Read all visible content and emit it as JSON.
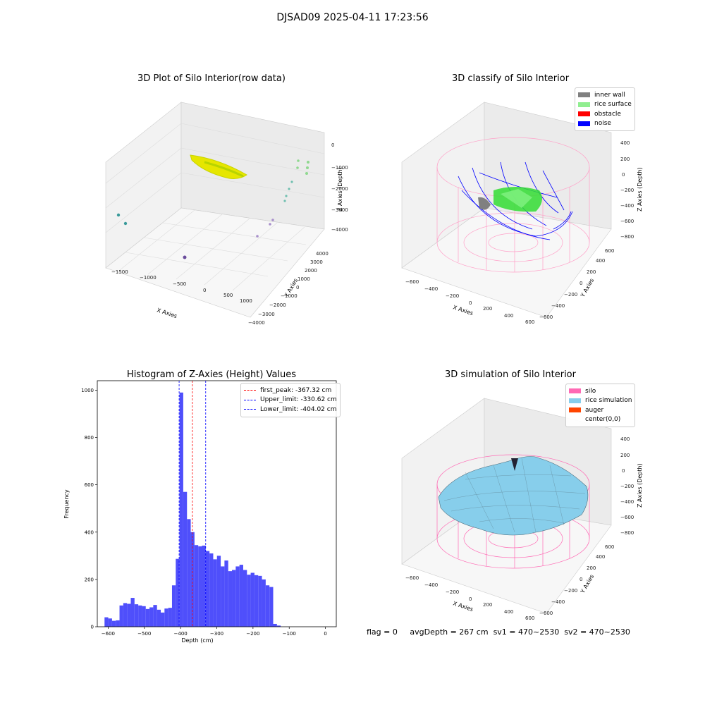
{
  "suptitle": "DJSAD09 2025-04-11 17:23:56",
  "panels": {
    "raw": {
      "title": "3D Plot of Silo Interior(row data)",
      "xlabel": "X Axies",
      "ylabel": "Y Axies",
      "zlabel": "Z Axies (Depth)",
      "xticks": [
        "−1500",
        "−1000",
        "−500",
        "0",
        "500",
        "1000"
      ],
      "yticks": [
        "−4000",
        "−3000",
        "−2000",
        "−1000",
        "0",
        "1000",
        "2000",
        "3000",
        "4000"
      ],
      "zticks": [
        "0",
        "−1000",
        "−2000",
        "−3000",
        "−4000"
      ]
    },
    "classify": {
      "title": "3D classify of Silo Interior",
      "xlabel": "X Axies",
      "ylabel": "Y Axies",
      "zlabel": "Z Axies (Depth)",
      "xticks": [
        "−600",
        "−400",
        "−200",
        "0",
        "200",
        "400",
        "600"
      ],
      "yticks": [
        "−600",
        "−400",
        "−200",
        "0",
        "200",
        "400",
        "600"
      ],
      "zticks": [
        "400",
        "200",
        "0",
        "−200",
        "−400",
        "−600",
        "−800"
      ],
      "legend": [
        {
          "label": "inner wall",
          "color": "#808080"
        },
        {
          "label": "rice surface",
          "color": "#90ee90"
        },
        {
          "label": "obstacle",
          "color": "#ff0000"
        },
        {
          "label": "noise",
          "color": "#0000ff"
        }
      ]
    },
    "simulation": {
      "title": "3D simulation of Silo Interior",
      "xlabel": "X Axies",
      "ylabel": "Y Axies",
      "zlabel": "Z Axies (Depth)",
      "xticks": [
        "−600",
        "−400",
        "−200",
        "0",
        "200",
        "400",
        "600"
      ],
      "yticks": [
        "−600",
        "−400",
        "−200",
        "0",
        "200",
        "400",
        "600"
      ],
      "zticks": [
        "400",
        "200",
        "0",
        "−200",
        "−400",
        "−600",
        "−800"
      ],
      "legend": [
        {
          "label": "silo",
          "color": "#ff69b4"
        },
        {
          "label": "rice simulation",
          "color": "#87ceeb"
        },
        {
          "label": "auger",
          "color": "#ff4500"
        },
        {
          "label": "center(0,0)",
          "color": ""
        }
      ]
    }
  },
  "chart_data": {
    "type": "bar",
    "title": "Histogram of Z-Axies (Height) Values",
    "xlabel": "Depth (cm)",
    "ylabel": "Frequency",
    "xlim": [
      -630,
      30
    ],
    "ylim": [
      0,
      1040
    ],
    "xticks": [
      -600,
      -500,
      -400,
      -300,
      -200,
      -100,
      0
    ],
    "yticks": [
      0,
      200,
      400,
      600,
      800,
      1000
    ],
    "bin_start": -610,
    "bin_width": 10.35,
    "values": [
      40,
      35,
      25,
      27,
      90,
      100,
      97,
      122,
      95,
      90,
      87,
      75,
      82,
      92,
      72,
      60,
      77,
      80,
      175,
      287,
      990,
      570,
      455,
      400,
      345,
      340,
      343,
      320,
      310,
      285,
      300,
      255,
      280,
      235,
      240,
      255,
      262,
      240,
      220,
      228,
      218,
      215,
      200,
      175,
      168,
      12,
      5
    ],
    "bar_color": "#4f4ffb",
    "vlines": [
      {
        "label": "first_peak: -367.32 cm",
        "x": -367.32,
        "color": "#ff0000"
      },
      {
        "label": "Upper_limit: -330.62 cm",
        "x": -330.62,
        "color": "#0000ff"
      },
      {
        "label": "Lower_limit: -404.02 cm",
        "x": -404.02,
        "color": "#0000ff"
      }
    ],
    "legend_position": "top-right"
  },
  "status": {
    "flag": "flag = 0",
    "avg": "avgDepth = 267 cm",
    "sv1": "sv1 = 470~2530",
    "sv2": "sv2 = 470~2530"
  }
}
